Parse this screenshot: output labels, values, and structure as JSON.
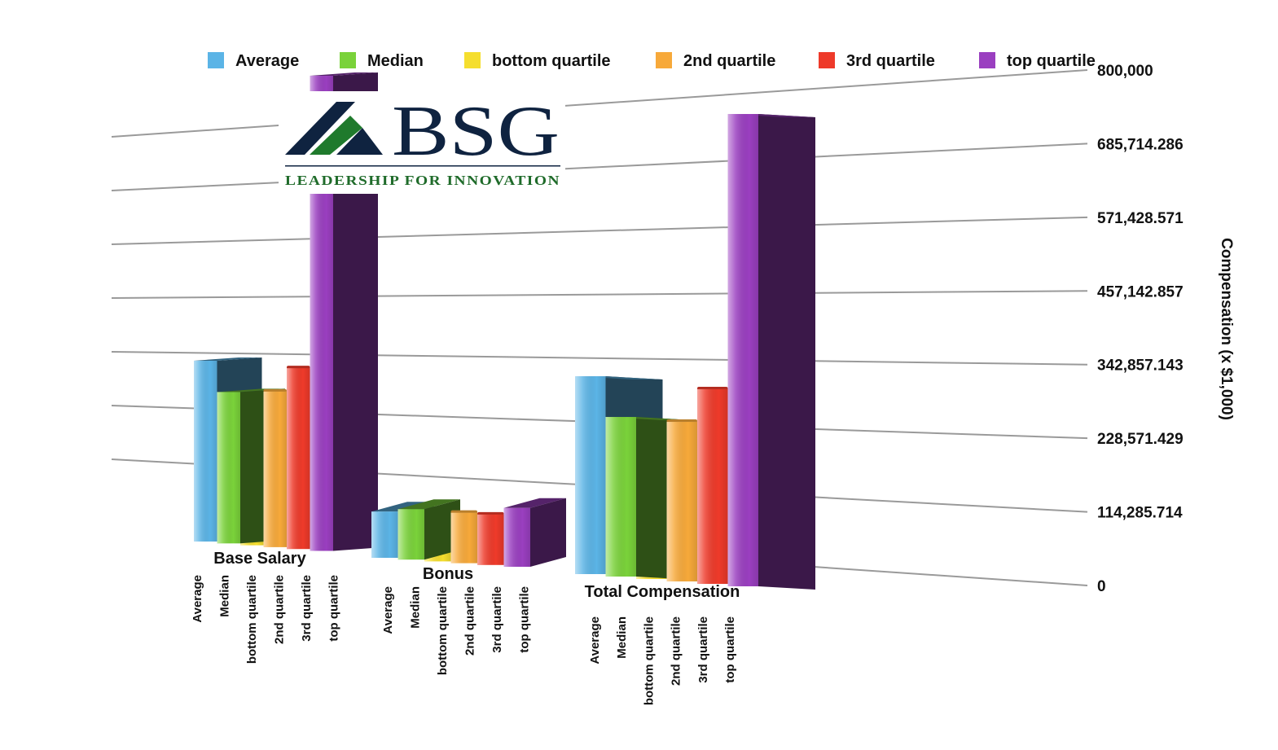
{
  "logo": {
    "name": "BSG",
    "tagline": "LEADERSHIP FOR INNOVATION"
  },
  "series_colors": {
    "Average": "#5bb4e6",
    "Median": "#7ad23a",
    "bottom quartile": "#f5de2e",
    "2nd quartile": "#f7a93a",
    "3rd quartile": "#ee3a2a",
    "top quartile": "#9a3fc0"
  },
  "chart_data": {
    "type": "bar",
    "title": "",
    "xlabel": "",
    "ylabel": "Compensation (x $1,000)",
    "ylim": [
      0,
      800000
    ],
    "yticks": [
      "0",
      "114,285.714",
      "228,571.429",
      "342,857.143",
      "457,142.857",
      "571,428.571",
      "685,714.286",
      "800,000"
    ],
    "legend_position": "top",
    "grid": true,
    "categories": [
      "Base Salary",
      "Bonus",
      "Total Compensation"
    ],
    "series": [
      {
        "name": "Average",
        "values": [
          215000,
          55000,
          310000
        ]
      },
      {
        "name": "Median",
        "values": [
          180000,
          60000,
          250000
        ]
      },
      {
        "name": "bottom quartile",
        "values": [
          140000,
          35000,
          240000
        ]
      },
      {
        "name": "2nd quartile",
        "values": [
          185000,
          60000,
          250000
        ]
      },
      {
        "name": "3rd quartile",
        "values": [
          215000,
          60000,
          305000
        ]
      },
      {
        "name": "top quartile",
        "values": [
          565000,
          70000,
          740000
        ]
      }
    ]
  }
}
